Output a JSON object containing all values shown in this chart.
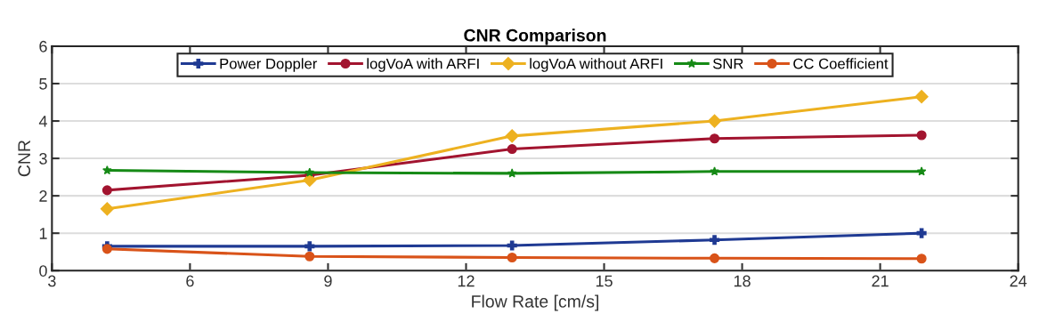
{
  "chart_data": {
    "type": "line",
    "title": "CNR Comparison",
    "xlabel": "Flow Rate [cm/s]",
    "ylabel": "CNR",
    "x": [
      4.2,
      8.6,
      13.0,
      17.4,
      21.9
    ],
    "series": [
      {
        "name": "Power Doppler",
        "color": "#1f3a93",
        "marker": "cross",
        "values": [
          0.65,
          0.65,
          0.67,
          0.82,
          1.0
        ]
      },
      {
        "name": "logVoA with ARFI",
        "color": "#a2142f",
        "marker": "circle",
        "values": [
          2.15,
          2.55,
          3.25,
          3.53,
          3.62
        ]
      },
      {
        "name": "logVoA without ARFI",
        "color": "#edb120",
        "marker": "diamond",
        "values": [
          1.65,
          2.42,
          3.6,
          4.0,
          4.65
        ]
      },
      {
        "name": "SNR",
        "color": "#168a16",
        "marker": "star",
        "values": [
          2.68,
          2.62,
          2.6,
          2.65,
          2.65
        ]
      },
      {
        "name": "CC Coefficient",
        "color": "#d95319",
        "marker": "circle",
        "values": [
          0.58,
          0.38,
          0.35,
          0.33,
          0.32
        ]
      }
    ],
    "xlim": [
      3,
      24
    ],
    "xticks": [
      3,
      6,
      9,
      12,
      15,
      18,
      21,
      24
    ],
    "ylim": [
      0,
      6
    ],
    "yticks": [
      0,
      1,
      2,
      3,
      4,
      5,
      6
    ],
    "grid": "y",
    "legend": "top",
    "line_style": "solid"
  }
}
